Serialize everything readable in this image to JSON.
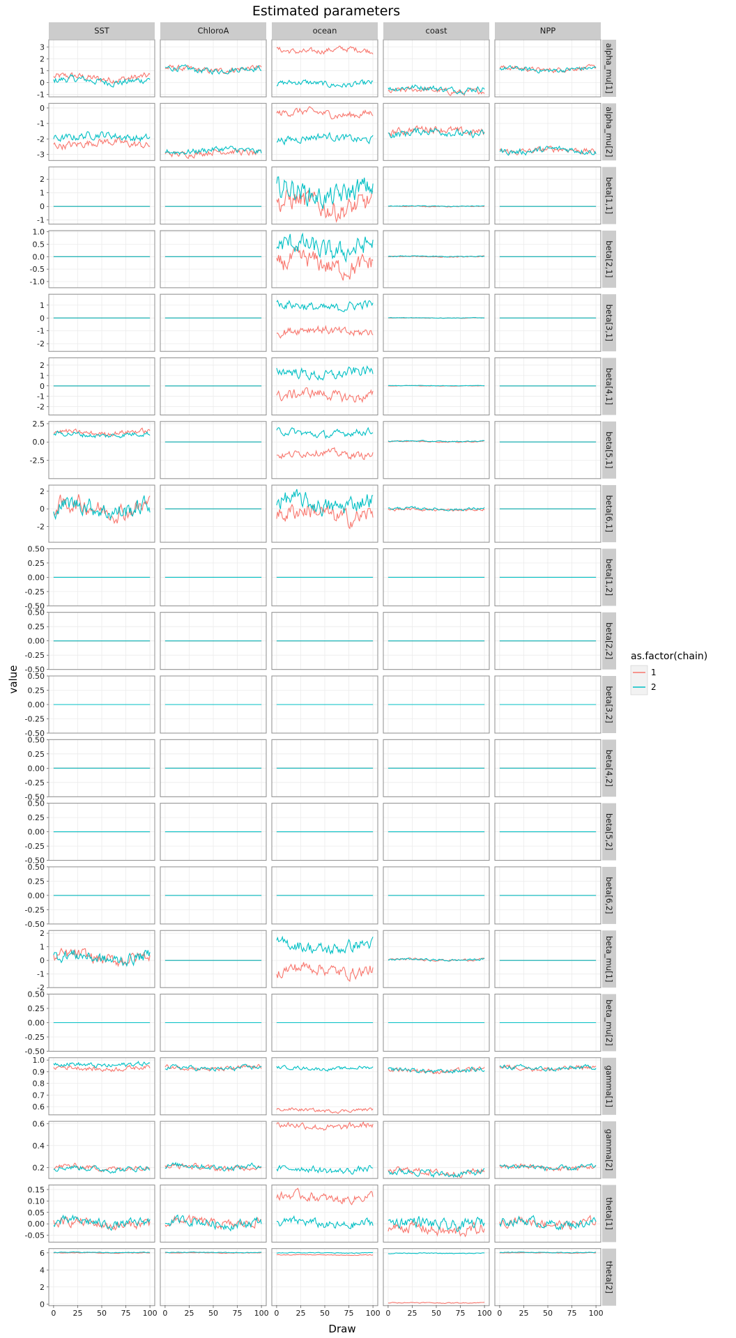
{
  "chart_data": {
    "type": "line",
    "title": "Estimated parameters",
    "xlabel": "Draw",
    "ylabel": "value",
    "x_range": [
      0,
      100
    ],
    "x_ticks": [
      "0",
      "25",
      "50",
      "75",
      "100"
    ],
    "legend": {
      "title": "as.factor(chain)",
      "placement": "right",
      "entries": [
        "1",
        "2"
      ]
    },
    "colors": {
      "chain_1": "#F8766D",
      "chain_2": "#00BFC4",
      "panel_bg": "#ffffff",
      "grid": "#ebebeb",
      "strip_bg": "#cccccc"
    },
    "columns": [
      "SST",
      "ChloroA",
      "ocean",
      "coast",
      "NPP"
    ],
    "rows": [
      {
        "label": "alpha_mu[1]",
        "ylim": [
          -1.2,
          3.6
        ],
        "y_ticks": [
          "3",
          "2",
          "1",
          "0",
          "-1"
        ],
        "y_tick_values": [
          3,
          2,
          1,
          0,
          -1
        ],
        "panels": [
          {
            "c1": 0.4,
            "c2": 0.15,
            "a": 0.3
          },
          {
            "c1": 1.1,
            "c2": 1.1,
            "a": 0.25
          },
          {
            "c1": 2.7,
            "c2": -0.1,
            "a": 0.25
          },
          {
            "c1": -0.7,
            "c2": -0.5,
            "a": 0.25
          },
          {
            "c1": 1.15,
            "c2": 1.1,
            "a": 0.2
          }
        ]
      },
      {
        "label": "alpha_mu[2]",
        "ylim": [
          -3.4,
          0.3
        ],
        "y_ticks": [
          "0",
          "-1",
          "-2",
          "-3"
        ],
        "y_tick_values": [
          0,
          -1,
          -2,
          -3
        ],
        "panels": [
          {
            "c1": -2.3,
            "c2": -1.85,
            "a": 0.25
          },
          {
            "c1": -2.9,
            "c2": -2.75,
            "a": 0.2
          },
          {
            "c1": -0.35,
            "c2": -1.95,
            "a": 0.25
          },
          {
            "c1": -1.45,
            "c2": -1.6,
            "a": 0.25
          },
          {
            "c1": -2.75,
            "c2": -2.75,
            "a": 0.2
          }
        ]
      },
      {
        "label": "beta[1,1]",
        "ylim": [
          -1.3,
          2.9
        ],
        "y_ticks": [
          "2",
          "1",
          "0",
          "-1"
        ],
        "y_tick_values": [
          2,
          1,
          0,
          -1
        ],
        "panels": [
          {
            "c1": 0,
            "c2": 0,
            "a": 0
          },
          {
            "c1": 0,
            "c2": 0,
            "a": 0
          },
          {
            "c1": 0.1,
            "c2": 1.0,
            "a": 0.8
          },
          {
            "c1": 0,
            "c2": 0.02,
            "a": 0.03
          },
          {
            "c1": 0,
            "c2": 0,
            "a": 0
          }
        ]
      },
      {
        "label": "beta[2,1]",
        "ylim": [
          -1.25,
          1.05
        ],
        "y_ticks": [
          "1.0",
          "0.5",
          "0.0",
          "-0.5",
          "-1.0"
        ],
        "y_tick_values": [
          1,
          0.5,
          0,
          -0.5,
          -1
        ],
        "panels": [
          {
            "c1": 0,
            "c2": 0,
            "a": 0
          },
          {
            "c1": 0,
            "c2": 0,
            "a": 0
          },
          {
            "c1": -0.3,
            "c2": 0.35,
            "a": 0.4
          },
          {
            "c1": 0,
            "c2": 0.01,
            "a": 0.02
          },
          {
            "c1": 0,
            "c2": 0,
            "a": 0
          }
        ]
      },
      {
        "label": "beta[3,1]",
        "ylim": [
          -2.6,
          1.85
        ],
        "y_ticks": [
          "1",
          "0",
          "-1",
          "-2"
        ],
        "y_tick_values": [
          1,
          0,
          -1,
          -2
        ],
        "panels": [
          {
            "c1": 0,
            "c2": 0,
            "a": 0
          },
          {
            "c1": 0,
            "c2": 0,
            "a": 0
          },
          {
            "c1": -1.0,
            "c2": 0.9,
            "a": 0.35
          },
          {
            "c1": 0,
            "c2": 0.01,
            "a": 0.02
          },
          {
            "c1": 0,
            "c2": 0,
            "a": 0
          }
        ]
      },
      {
        "label": "beta[4,1]",
        "ylim": [
          -2.8,
          2.7
        ],
        "y_ticks": [
          "2",
          "1",
          "0",
          "-1",
          "-2"
        ],
        "y_tick_values": [
          2,
          1,
          0,
          -1,
          -2
        ],
        "panels": [
          {
            "c1": 0,
            "c2": 0,
            "a": 0
          },
          {
            "c1": 0,
            "c2": 0,
            "a": 0
          },
          {
            "c1": -0.9,
            "c2": 1.2,
            "a": 0.5
          },
          {
            "c1": 0,
            "c2": 0.02,
            "a": 0.02
          },
          {
            "c1": 0,
            "c2": 0,
            "a": 0
          }
        ]
      },
      {
        "label": "beta[5,1]",
        "ylim": [
          -5.0,
          2.8
        ],
        "y_ticks": [
          "2.5",
          "0.0",
          "-2.5"
        ],
        "y_tick_values": [
          2.5,
          0,
          -2.5
        ],
        "panels": [
          {
            "c1": 1.3,
            "c2": 1.0,
            "a": 0.35
          },
          {
            "c1": 0,
            "c2": 0,
            "a": 0
          },
          {
            "c1": -1.6,
            "c2": 1.2,
            "a": 0.5
          },
          {
            "c1": 0.05,
            "c2": 0.1,
            "a": 0.08
          },
          {
            "c1": 0,
            "c2": 0,
            "a": 0
          }
        ]
      },
      {
        "label": "beta[6,1]",
        "ylim": [
          -3.8,
          2.7
        ],
        "y_ticks": [
          "2",
          "0",
          "-2"
        ],
        "y_tick_values": [
          2,
          0,
          -2
        ],
        "panels": [
          {
            "c1": 0.1,
            "c2": 0.1,
            "a": 1.0
          },
          {
            "c1": 0,
            "c2": 0,
            "a": 0
          },
          {
            "c1": -0.6,
            "c2": 0.6,
            "a": 1.0
          },
          {
            "c1": -0.1,
            "c2": 0,
            "a": 0.15
          },
          {
            "c1": 0,
            "c2": 0,
            "a": 0
          }
        ]
      },
      {
        "label": "beta[1,2]",
        "ylim": [
          -0.5,
          0.5
        ],
        "y_ticks": [
          "0.50",
          "0.25",
          "0.00",
          "-0.25",
          "-0.50"
        ],
        "y_tick_values": [
          0.5,
          0.25,
          0,
          -0.25,
          -0.5
        ],
        "panels": [
          {
            "c1": 0,
            "c2": 0,
            "a": 0
          },
          {
            "c1": 0,
            "c2": 0,
            "a": 0
          },
          {
            "c1": 0,
            "c2": 0,
            "a": 0
          },
          {
            "c1": 0,
            "c2": 0,
            "a": 0
          },
          {
            "c1": 0,
            "c2": 0,
            "a": 0
          }
        ]
      },
      {
        "label": "beta[2,2]",
        "ylim": [
          -0.5,
          0.5
        ],
        "y_ticks": [
          "0.50",
          "0.25",
          "0.00",
          "-0.25",
          "-0.50"
        ],
        "y_tick_values": [
          0.5,
          0.25,
          0,
          -0.25,
          -0.5
        ],
        "panels": [
          {
            "c1": 0,
            "c2": 0,
            "a": 0
          },
          {
            "c1": 0,
            "c2": 0,
            "a": 0
          },
          {
            "c1": 0,
            "c2": 0,
            "a": 0
          },
          {
            "c1": 0,
            "c2": 0,
            "a": 0
          },
          {
            "c1": 0,
            "c2": 0,
            "a": 0
          }
        ]
      },
      {
        "label": "beta[3,2]",
        "ylim": [
          -0.5,
          0.5
        ],
        "y_ticks": [
          "0.50",
          "0.25",
          "0.00",
          "-0.25",
          "-0.50"
        ],
        "y_tick_values": [
          0.5,
          0.25,
          0,
          -0.25,
          -0.5
        ],
        "panels": [
          {
            "c1": 0,
            "c2": 0,
            "a": 0
          },
          {
            "c1": 0,
            "c2": 0,
            "a": 0
          },
          {
            "c1": 0,
            "c2": 0,
            "a": 0
          },
          {
            "c1": 0,
            "c2": 0,
            "a": 0
          },
          {
            "c1": 0,
            "c2": 0,
            "a": 0
          }
        ]
      },
      {
        "label": "beta[4,2]",
        "ylim": [
          -0.5,
          0.5
        ],
        "y_ticks": [
          "0.50",
          "0.25",
          "0.00",
          "-0.25",
          "-0.50"
        ],
        "y_tick_values": [
          0.5,
          0.25,
          0,
          -0.25,
          -0.5
        ],
        "panels": [
          {
            "c1": 0,
            "c2": 0,
            "a": 0
          },
          {
            "c1": 0,
            "c2": 0,
            "a": 0
          },
          {
            "c1": 0,
            "c2": 0,
            "a": 0
          },
          {
            "c1": 0,
            "c2": 0,
            "a": 0
          },
          {
            "c1": 0,
            "c2": 0,
            "a": 0
          }
        ]
      },
      {
        "label": "beta[5,2]",
        "ylim": [
          -0.5,
          0.5
        ],
        "y_ticks": [
          "0.50",
          "0.25",
          "0.00",
          "-0.25",
          "-0.50"
        ],
        "y_tick_values": [
          0.5,
          0.25,
          0,
          -0.25,
          -0.5
        ],
        "panels": [
          {
            "c1": 0,
            "c2": 0,
            "a": 0
          },
          {
            "c1": 0,
            "c2": 0,
            "a": 0
          },
          {
            "c1": 0,
            "c2": 0,
            "a": 0
          },
          {
            "c1": 0,
            "c2": 0,
            "a": 0
          },
          {
            "c1": 0,
            "c2": 0,
            "a": 0
          }
        ]
      },
      {
        "label": "beta[6,2]",
        "ylim": [
          -0.5,
          0.5
        ],
        "y_ticks": [
          "0.50",
          "0.25",
          "0.00",
          "-0.25",
          "-0.50"
        ],
        "y_tick_values": [
          0.5,
          0.25,
          0,
          -0.25,
          -0.5
        ],
        "panels": [
          {
            "c1": 0,
            "c2": 0,
            "a": 0
          },
          {
            "c1": 0,
            "c2": 0,
            "a": 0
          },
          {
            "c1": 0,
            "c2": 0,
            "a": 0
          },
          {
            "c1": 0,
            "c2": 0,
            "a": 0
          },
          {
            "c1": 0,
            "c2": 0,
            "a": 0
          }
        ]
      },
      {
        "label": "beta_mu[1]",
        "ylim": [
          -2.0,
          2.2
        ],
        "y_ticks": [
          "2",
          "1",
          "0",
          "-1",
          "-2"
        ],
        "y_tick_values": [
          2,
          1,
          0,
          -1,
          -2
        ],
        "panels": [
          {
            "c1": 0.2,
            "c2": 0.2,
            "a": 0.45
          },
          {
            "c1": 0,
            "c2": 0,
            "a": 0
          },
          {
            "c1": -0.7,
            "c2": 1.0,
            "a": 0.45
          },
          {
            "c1": 0.05,
            "c2": 0.05,
            "a": 0.08
          },
          {
            "c1": 0,
            "c2": 0,
            "a": 0
          }
        ]
      },
      {
        "label": "beta_mu[2]",
        "ylim": [
          -0.5,
          0.5
        ],
        "y_ticks": [
          "0.50",
          "0.25",
          "0.00",
          "-0.25",
          "-0.50"
        ],
        "y_tick_values": [
          0.5,
          0.25,
          0,
          -0.25,
          -0.5
        ],
        "panels": [
          {
            "c1": 0,
            "c2": 0,
            "a": 0
          },
          {
            "c1": 0,
            "c2": 0,
            "a": 0
          },
          {
            "c1": 0,
            "c2": 0,
            "a": 0
          },
          {
            "c1": 0,
            "c2": 0,
            "a": 0
          },
          {
            "c1": 0,
            "c2": 0,
            "a": 0
          }
        ]
      },
      {
        "label": "gamma[1]",
        "ylim": [
          0.53,
          1.02
        ],
        "y_ticks": [
          "1.0",
          "0.9",
          "0.8",
          "0.7",
          "0.6"
        ],
        "y_tick_values": [
          1.0,
          0.9,
          0.8,
          0.7,
          0.6
        ],
        "panels": [
          {
            "c1": 0.93,
            "c2": 0.96,
            "a": 0.02
          },
          {
            "c1": 0.93,
            "c2": 0.93,
            "a": 0.02
          },
          {
            "c1": 0.57,
            "c2": 0.93,
            "a": 0.015
          },
          {
            "c1": 0.91,
            "c2": 0.91,
            "a": 0.02
          },
          {
            "c1": 0.93,
            "c2": 0.93,
            "a": 0.02
          }
        ]
      },
      {
        "label": "gamma[2]",
        "ylim": [
          0.1,
          0.62
        ],
        "y_ticks": [
          "0.6",
          "0.4",
          "0.2"
        ],
        "y_tick_values": [
          0.6,
          0.4,
          0.2
        ],
        "panels": [
          {
            "c1": 0.2,
            "c2": 0.19,
            "a": 0.025
          },
          {
            "c1": 0.2,
            "c2": 0.21,
            "a": 0.025
          },
          {
            "c1": 0.575,
            "c2": 0.18,
            "a": 0.03
          },
          {
            "c1": 0.16,
            "c2": 0.15,
            "a": 0.03
          },
          {
            "c1": 0.2,
            "c2": 0.2,
            "a": 0.025
          }
        ]
      },
      {
        "label": "theta[1]",
        "ylim": [
          -0.08,
          0.17
        ],
        "y_ticks": [
          "0.15",
          "0.10",
          "0.05",
          "0.00",
          "-0.05"
        ],
        "y_tick_values": [
          0.15,
          0.1,
          0.05,
          0,
          -0.05
        ],
        "panels": [
          {
            "c1": 0,
            "c2": 0.005,
            "a": 0.02
          },
          {
            "c1": 0.005,
            "c2": 0.005,
            "a": 0.02
          },
          {
            "c1": 0.115,
            "c2": 0.0,
            "a": 0.02
          },
          {
            "c1": -0.025,
            "c2": 0.0,
            "a": 0.025
          },
          {
            "c1": 0.005,
            "c2": 0.005,
            "a": 0.02
          }
        ]
      },
      {
        "label": "theta[2]",
        "ylim": [
          -0.2,
          6.5
        ],
        "y_ticks": [
          "6",
          "4",
          "2",
          "0"
        ],
        "y_tick_values": [
          6,
          4,
          2,
          0
        ],
        "panels": [
          {
            "c1": 6.0,
            "c2": 6.05,
            "a": 0.04
          },
          {
            "c1": 6.0,
            "c2": 6.05,
            "a": 0.04
          },
          {
            "c1": 5.75,
            "c2": 6.0,
            "a": 0.05
          },
          {
            "c1": 0.15,
            "c2": 5.95,
            "a": 0.05
          },
          {
            "c1": 6.0,
            "c2": 6.05,
            "a": 0.04
          }
        ]
      }
    ]
  }
}
